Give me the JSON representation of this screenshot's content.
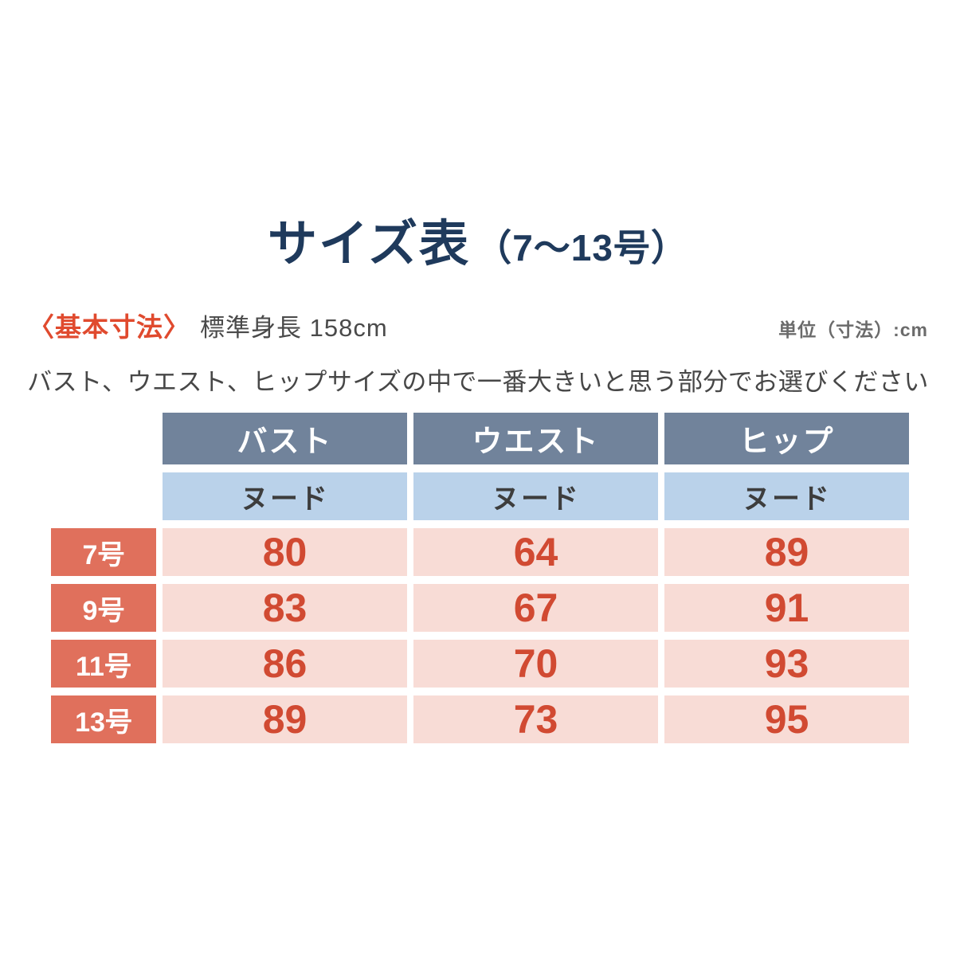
{
  "header": {
    "title": "サイズ表",
    "title_range": "（7〜13号）"
  },
  "meta": {
    "basic_label": "〈基本寸法〉",
    "height_label": "標準身長 158cm",
    "unit_label": "単位（寸法）:cm",
    "instruction": "バスト、ウエスト、ヒップサイズの中で一番大きいと思う部分でお選びください"
  },
  "chart_data": {
    "type": "table",
    "title": "サイズ表（7〜13号）",
    "unit": "cm",
    "standard_height_cm": 158,
    "columns": [
      "バスト",
      "ウエスト",
      "ヒップ"
    ],
    "subheaders": [
      "ヌード",
      "ヌード",
      "ヌード"
    ],
    "rows": [
      {
        "label": "7号",
        "values": [
          "80",
          "64",
          "89"
        ]
      },
      {
        "label": "9号",
        "values": [
          "83",
          "67",
          "91"
        ]
      },
      {
        "label": "11号",
        "values": [
          "86",
          "70",
          "93"
        ]
      },
      {
        "label": "13号",
        "values": [
          "89",
          "73",
          "95"
        ]
      }
    ]
  },
  "colors": {
    "title_navy": "#1f3a5c",
    "accent_red": "#e04a2e",
    "header_slate": "#71839b",
    "subheader_blue": "#bad2ea",
    "row_label_salmon": "#e0705c",
    "cell_pink": "#f8dcd6",
    "value_red": "#d14a32",
    "body_text_gray": "#474747",
    "unit_gray": "#6b6b6b",
    "background": "#ffffff"
  }
}
